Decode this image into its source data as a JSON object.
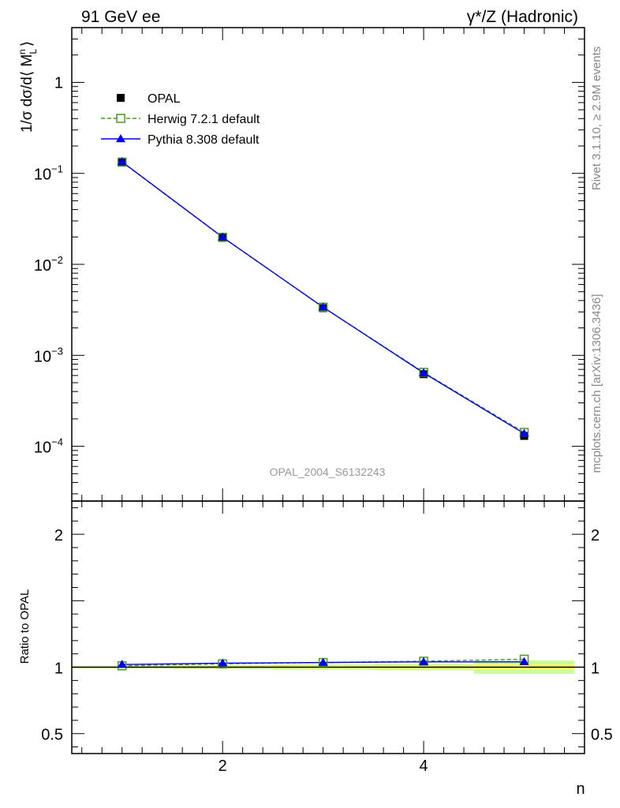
{
  "header": {
    "left": "91 GeV ee",
    "right": "γ*/Z (Hadronic)"
  },
  "side_text": {
    "rivet": "Rivet 3.1.10, ≥ 2.9M events",
    "mcplots": "mcplots.cern.ch [arXiv:1306.3436]"
  },
  "watermark": "OPAL_2004_S6132243",
  "legend": [
    {
      "label": "OPAL",
      "marker": "filled-square",
      "color": "#000000",
      "line": "none"
    },
    {
      "label": "Herwig 7.2.1 default",
      "marker": "open-square",
      "color": "#4a9a1e",
      "line": "dashed"
    },
    {
      "label": "Pythia 8.308 default",
      "marker": "filled-triangle",
      "color": "#0000ee",
      "line": "solid"
    }
  ],
  "colors": {
    "opal": "#000000",
    "herwig": "#4a9a1e",
    "pythia": "#0000ee",
    "band_inner": "#ffff66",
    "band_outer": "#ccff99"
  },
  "chart_data": [
    {
      "type": "scatter",
      "panel": "main",
      "ylabel": "1/σ dσ/d⟨ M_L^n ⟩",
      "yscale": "log",
      "ylim": [
        2.5e-05,
        4
      ],
      "xlim": [
        0.5,
        5.6
      ],
      "y_ticks": [
        {
          "value": 1,
          "label": "1"
        },
        {
          "value": 0.1,
          "label": "10",
          "exp": "−1"
        },
        {
          "value": 0.01,
          "label": "10",
          "exp": "−2"
        },
        {
          "value": 0.001,
          "label": "10",
          "exp": "−3"
        },
        {
          "value": 0.0001,
          "label": "10",
          "exp": "−4"
        }
      ],
      "x": [
        1,
        2,
        3,
        4,
        5
      ],
      "series": [
        {
          "name": "OPAL",
          "values": [
            0.132,
            0.0195,
            0.0033,
            0.00062,
            0.00013
          ]
        },
        {
          "name": "Herwig 7.2.1 default",
          "values": [
            0.133,
            0.0198,
            0.00338,
            0.00065,
            0.000142
          ]
        },
        {
          "name": "Pythia 8.308 default",
          "values": [
            0.134,
            0.0199,
            0.00338,
            0.00064,
            0.000138
          ]
        }
      ]
    },
    {
      "type": "line",
      "panel": "ratio",
      "ylabel": "Ratio to OPAL",
      "xlabel": "n",
      "yscale": "linear",
      "ylim": [
        0.35,
        2.25
      ],
      "xlim": [
        0.5,
        5.6
      ],
      "y_ticks": [
        {
          "value": 0.5,
          "label": "0.5"
        },
        {
          "value": 1,
          "label": "1"
        },
        {
          "value": 2,
          "label": "2"
        }
      ],
      "x_ticks": [
        {
          "value": 2,
          "label": "2"
        },
        {
          "value": 4,
          "label": "4"
        }
      ],
      "x": [
        1,
        2,
        3,
        4,
        5
      ],
      "uncertainty_band": {
        "inner": [
          0.005,
          0.008,
          0.01,
          0.012,
          0.02
        ],
        "outer": [
          0.01,
          0.015,
          0.02,
          0.025,
          0.05
        ]
      },
      "series": [
        {
          "name": "Herwig 7.2.1 default",
          "values": [
            1.01,
            1.025,
            1.035,
            1.045,
            1.06
          ]
        },
        {
          "name": "Pythia 8.308 default",
          "values": [
            1.02,
            1.03,
            1.035,
            1.04,
            1.04
          ]
        }
      ]
    }
  ]
}
